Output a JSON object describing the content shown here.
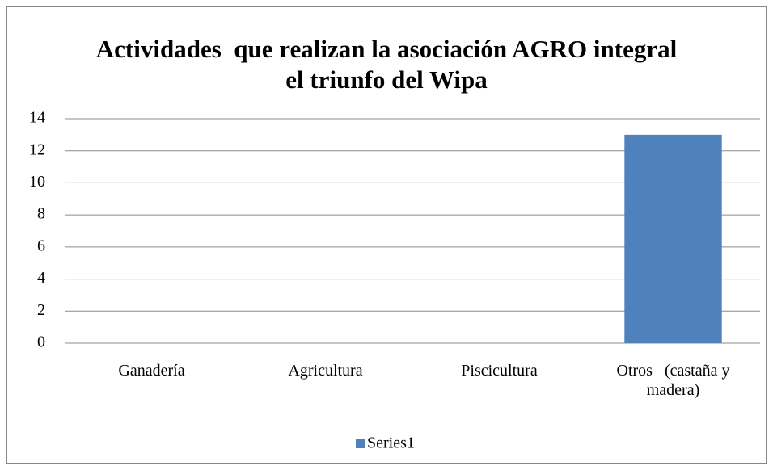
{
  "chart_data": {
    "type": "bar",
    "title": "Actividades  que realizan la asociación AGRO integral el triunfo del Wipa",
    "categories": [
      "Ganadería",
      "Agricultura",
      "Piscicultura",
      "Otros   (castaña y madera)"
    ],
    "series": [
      {
        "name": "Series1",
        "color": "#4f81bd",
        "values": [
          0,
          0,
          0,
          13
        ]
      }
    ],
    "ylim": [
      0,
      14
    ],
    "yticks": [
      0,
      2,
      4,
      6,
      8,
      10,
      12,
      14
    ],
    "grid": true,
    "legend": "bottom"
  }
}
